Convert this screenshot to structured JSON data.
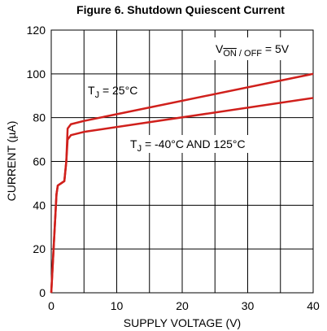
{
  "chart_data": {
    "type": "line",
    "title": "Figure 6. Shutdown Quiescent Current",
    "xlabel": "SUPPLY VOLTAGE (V)",
    "ylabel": "CURRENT (µA)",
    "xlim": [
      0,
      40
    ],
    "ylim": [
      0,
      120
    ],
    "xticks": [
      0,
      10,
      20,
      30,
      40
    ],
    "yticks": [
      0,
      20,
      40,
      60,
      80,
      100,
      120
    ],
    "x_minor_grid": [
      5,
      15,
      25,
      35
    ],
    "grid": true,
    "annotations": [
      {
        "base": "V",
        "sub_overline": "ON",
        "sub": " / OFF",
        "rest": " = 5V"
      },
      {
        "base": "T",
        "sub": "J",
        "rest": " = 25°C"
      },
      {
        "base": "T",
        "sub": "J",
        "rest": " = -40°C AND 125°C"
      }
    ],
    "series": [
      {
        "color": "#d0201c",
        "x": [
          0,
          0.8,
          1,
          1.5,
          2,
          2.3,
          2.5,
          3,
          5,
          40
        ],
        "values": [
          0,
          45,
          49,
          50,
          51,
          60,
          75,
          77,
          78.5,
          100
        ]
      },
      {
        "color": "#d0201c",
        "x": [
          0,
          0.8,
          1,
          1.5,
          2,
          2.3,
          2.5,
          3,
          5,
          40
        ],
        "values": [
          0,
          45,
          49,
          50,
          51,
          60,
          70,
          72,
          73.5,
          89
        ]
      }
    ]
  }
}
